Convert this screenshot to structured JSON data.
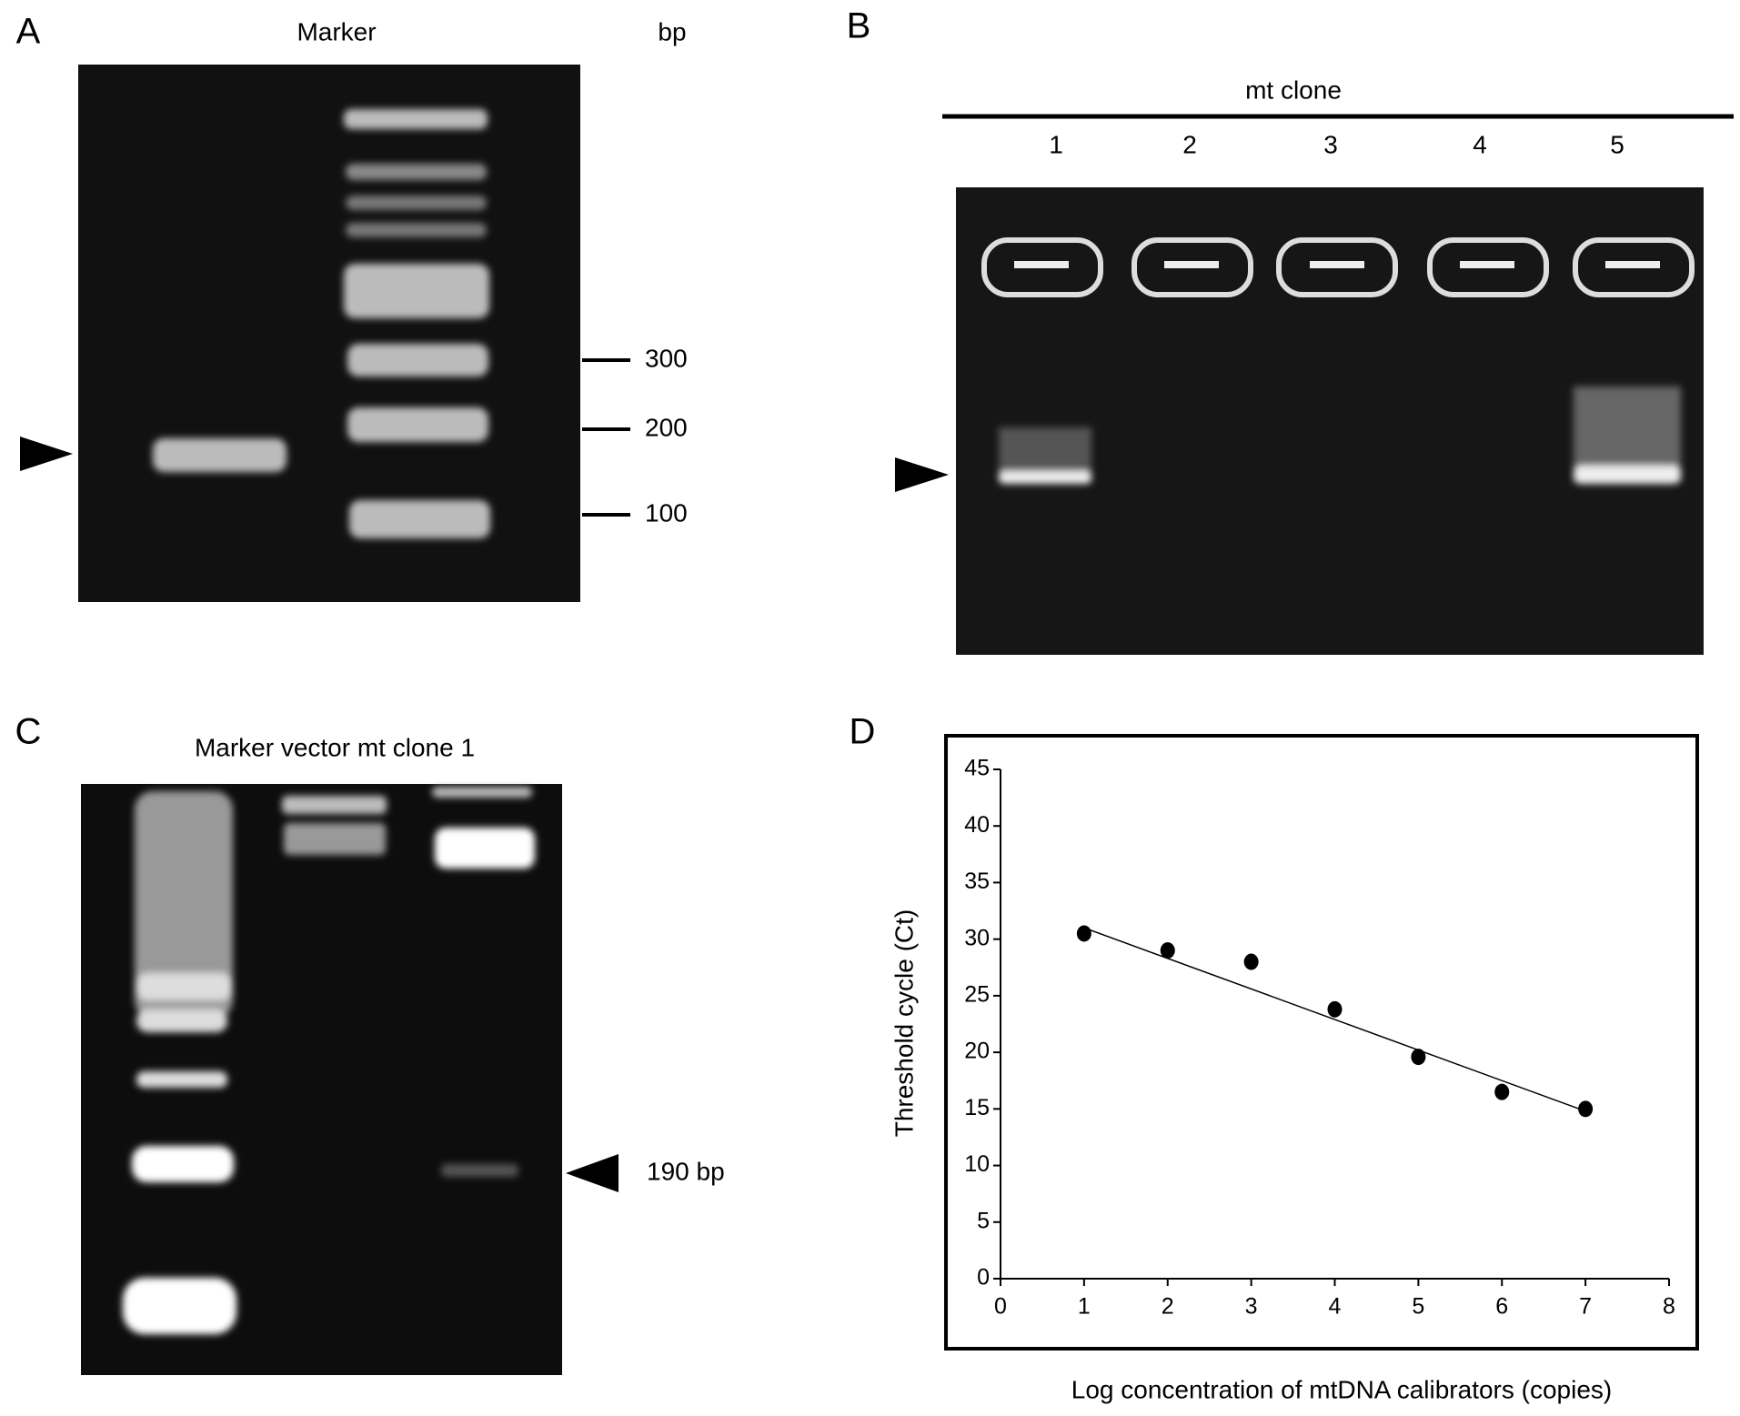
{
  "panel_a": {
    "label": "A",
    "lane_label": "Marker",
    "unit": "bp",
    "size_labels": [
      "300",
      "200",
      "100"
    ]
  },
  "panel_b": {
    "label": "B",
    "title": "mt clone",
    "lanes": [
      "1",
      "2",
      "3",
      "4",
      "5"
    ]
  },
  "panel_c": {
    "label": "C",
    "title": "Marker vector mt clone 1",
    "band_label": "190 bp"
  },
  "panel_d": {
    "label": "D"
  },
  "chart_data": {
    "type": "scatter",
    "xlabel": "Log concentration of mtDNA calibrators (copies)",
    "ylabel": "Threshold cycle (Ct)",
    "x": [
      1,
      2,
      3,
      4,
      5,
      6,
      7
    ],
    "values": [
      30.5,
      29,
      28,
      23.8,
      19.6,
      16.5,
      15
    ],
    "color": "#000000",
    "trendline": {
      "x": [
        1,
        7
      ],
      "y": [
        31,
        14.8
      ]
    },
    "xlim": [
      0,
      8
    ],
    "xticks": [
      0,
      1,
      2,
      3,
      4,
      5,
      6,
      7,
      8
    ],
    "ylim": [
      0,
      45
    ],
    "yticks": [
      0,
      5,
      10,
      15,
      20,
      25,
      30,
      35,
      40,
      45
    ]
  }
}
